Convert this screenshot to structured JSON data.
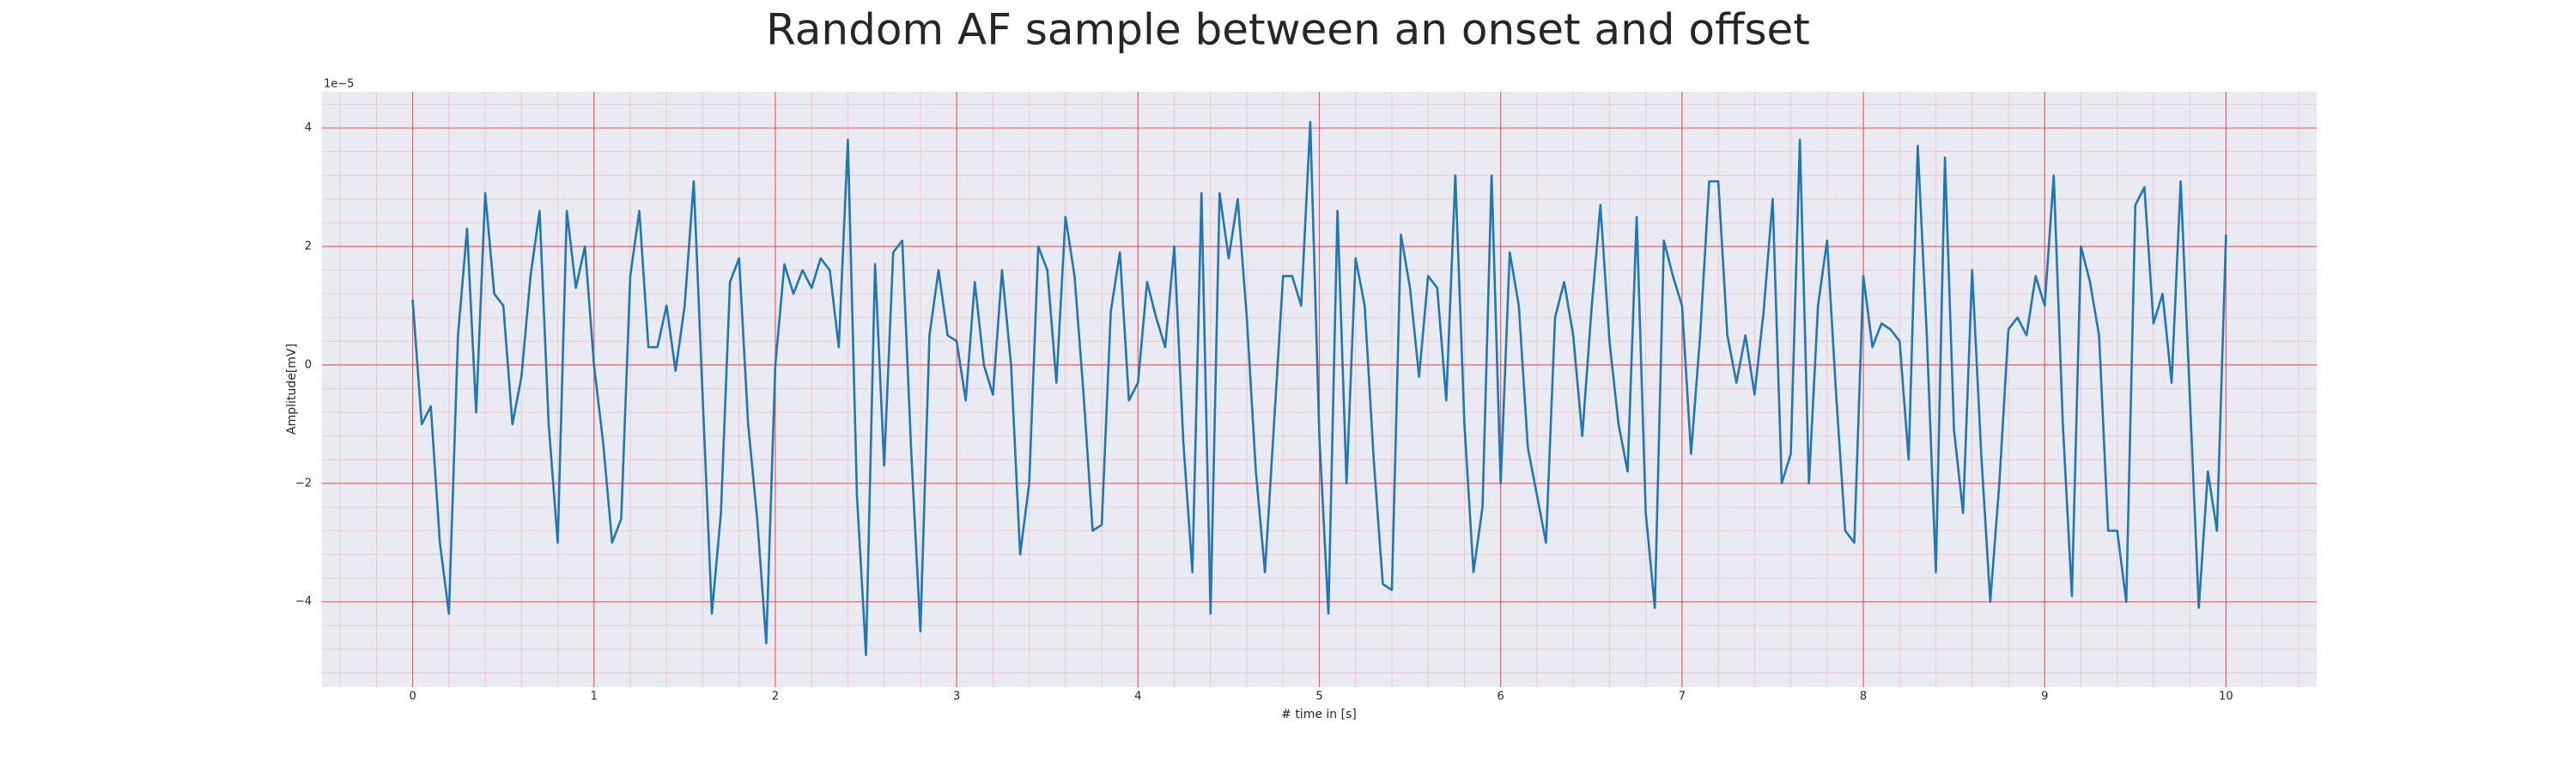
{
  "chart_data": {
    "type": "line",
    "title": "Random AF sample between an onset and offset",
    "x_label": "# time in [s]",
    "y_label": "Amplitude[mV]",
    "y_offset_label": "1e−5",
    "xlim": [
      -0.5,
      10.5
    ],
    "ylim": [
      -5.44,
      4.61
    ],
    "xticks": [
      0,
      1,
      2,
      3,
      4,
      5,
      6,
      7,
      8,
      9,
      10
    ],
    "yticks": [
      {
        "value": -4,
        "label": "−4"
      },
      {
        "value": -2,
        "label": "−2"
      },
      0,
      2,
      4
    ],
    "grid": true,
    "minor_grid": true,
    "x": [
      0,
      0.05,
      0.1,
      0.15,
      0.2,
      0.25,
      0.3,
      0.35,
      0.4,
      0.45,
      0.5,
      0.55,
      0.6,
      0.65,
      0.7,
      0.75,
      0.8,
      0.85,
      0.9,
      0.95,
      1,
      1.05,
      1.1,
      1.15,
      1.2,
      1.25,
      1.3,
      1.35,
      1.4,
      1.45,
      1.5,
      1.55,
      1.6,
      1.65,
      1.7,
      1.75,
      1.8,
      1.85,
      1.9,
      1.95,
      2,
      2.05,
      2.1,
      2.15,
      2.2,
      2.25,
      2.3,
      2.35,
      2.4,
      2.45,
      2.5,
      2.55,
      2.6,
      2.65,
      2.7,
      2.75,
      2.8,
      2.85,
      2.9,
      2.95,
      3,
      3.05,
      3.1,
      3.15,
      3.2,
      3.25,
      3.3,
      3.35,
      3.4,
      3.45,
      3.5,
      3.55,
      3.6,
      3.65,
      3.7,
      3.75,
      3.8,
      3.85,
      3.9,
      3.95,
      4,
      4.05,
      4.1,
      4.15,
      4.2,
      4.25,
      4.3,
      4.35,
      4.4,
      4.45,
      4.5,
      4.55,
      4.6,
      4.65,
      4.7,
      4.75,
      4.8,
      4.85,
      4.9,
      4.95,
      5,
      5.05,
      5.1,
      5.15,
      5.2,
      5.25,
      5.3,
      5.35,
      5.4,
      5.45,
      5.5,
      5.55,
      5.6,
      5.65,
      5.7,
      5.75,
      5.8,
      5.85,
      5.9,
      5.95,
      6,
      6.05,
      6.1,
      6.15,
      6.2,
      6.25,
      6.3,
      6.35,
      6.4,
      6.45,
      6.5,
      6.55,
      6.6,
      6.65,
      6.7,
      6.75,
      6.8,
      6.85,
      6.9,
      6.95,
      7,
      7.05,
      7.1,
      7.15,
      7.2,
      7.25,
      7.3,
      7.35,
      7.4,
      7.45,
      7.5,
      7.55,
      7.6,
      7.65,
      7.7,
      7.75,
      7.8,
      7.85,
      7.9,
      7.95,
      8,
      8.05,
      8.1,
      8.15,
      8.2,
      8.25,
      8.3,
      8.35,
      8.4,
      8.45,
      8.5,
      8.55,
      8.6,
      8.65,
      8.7,
      8.75,
      8.8,
      8.85,
      8.9,
      8.95,
      9,
      9.05,
      9.1,
      9.15,
      9.2,
      9.25,
      9.3,
      9.35,
      9.4,
      9.45,
      9.5,
      9.55,
      9.6,
      9.65,
      9.7,
      9.75,
      9.8,
      9.85,
      9.9,
      9.95,
      10
    ],
    "series": [
      {
        "color": "#1f77b4",
        "values": [
          1.1,
          -1.0,
          -0.7,
          -3.0,
          -4.2,
          0.5,
          2.3,
          -0.8,
          2.9,
          1.2,
          1.0,
          -1.0,
          -0.2,
          1.5,
          2.6,
          -1.0,
          -3.0,
          2.6,
          1.3,
          2.0,
          0.0,
          -1.3,
          -3.0,
          -2.6,
          1.5,
          2.6,
          0.3,
          0.3,
          1.0,
          -0.1,
          1.0,
          3.1,
          -0.6,
          -4.2,
          -2.5,
          1.4,
          1.8,
          -1.0,
          -2.6,
          -4.7,
          0.0,
          1.7,
          1.2,
          1.6,
          1.3,
          1.8,
          1.6,
          0.3,
          3.8,
          -2.2,
          -4.9,
          1.7,
          -1.7,
          1.9,
          2.1,
          -1.5,
          -4.5,
          0.5,
          1.6,
          0.5,
          0.4,
          -0.6,
          1.4,
          0.0,
          -0.5,
          1.6,
          0.0,
          -3.2,
          -2.0,
          2.0,
          1.6,
          -0.3,
          2.5,
          1.5,
          -0.5,
          -2.8,
          -2.7,
          0.9,
          1.9,
          -0.6,
          -0.3,
          1.4,
          0.8,
          0.3,
          2.0,
          -1.3,
          -3.5,
          2.9,
          -4.2,
          2.9,
          1.8,
          2.8,
          0.8,
          -1.8,
          -3.5,
          -1.0,
          1.5,
          1.5,
          1.0,
          4.1,
          -1.2,
          -4.2,
          2.6,
          -2.0,
          1.8,
          1.0,
          -1.6,
          -3.7,
          -3.8,
          2.2,
          1.3,
          -0.2,
          1.5,
          1.3,
          -0.6,
          3.2,
          -1.0,
          -3.5,
          -2.4,
          3.2,
          -2.0,
          1.9,
          1.0,
          -1.4,
          -2.2,
          -3.0,
          0.8,
          1.4,
          0.5,
          -1.2,
          0.9,
          2.7,
          0.4,
          -1.0,
          -1.8,
          2.5,
          -2.5,
          -4.1,
          2.1,
          1.5,
          1.0,
          -1.5,
          0.5,
          3.1,
          3.1,
          0.5,
          -0.3,
          0.5,
          -0.5,
          0.9,
          2.8,
          -2.0,
          -1.5,
          3.8,
          -2.0,
          1.0,
          2.1,
          -0.5,
          -2.8,
          -3.0,
          1.5,
          0.3,
          0.7,
          0.6,
          0.4,
          -1.6,
          3.7,
          0.5,
          -3.5,
          3.5,
          -1.1,
          -2.5,
          1.6,
          -1.5,
          -4.0,
          -2.0,
          0.6,
          0.8,
          0.5,
          1.5,
          1.0,
          3.2,
          -1.0,
          -3.9,
          2.0,
          1.4,
          0.5,
          -2.8,
          -2.8,
          -4.0,
          2.7,
          3.0,
          0.7,
          1.2,
          -0.3,
          3.1,
          -0.5,
          -4.1,
          -1.8,
          -2.8,
          2.2
        ]
      }
    ]
  }
}
